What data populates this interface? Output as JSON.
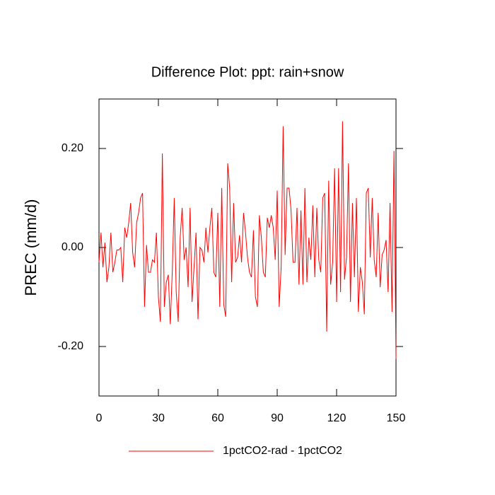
{
  "chart_data": {
    "type": "line",
    "title": "Difference Plot: ppt: rain+snow",
    "y_label": "PREC  (mm/d)",
    "x": [
      0,
      1,
      2,
      3,
      4,
      5,
      6,
      7,
      8,
      9,
      10,
      11,
      12,
      13,
      14,
      15,
      16,
      17,
      18,
      19,
      20,
      21,
      22,
      23,
      24,
      25,
      26,
      27,
      28,
      29,
      30,
      31,
      32,
      33,
      34,
      35,
      36,
      37,
      38,
      39,
      40,
      41,
      42,
      43,
      44,
      45,
      46,
      47,
      48,
      49,
      50,
      51,
      52,
      53,
      54,
      55,
      56,
      57,
      58,
      59,
      60,
      61,
      62,
      63,
      64,
      65,
      66,
      67,
      68,
      69,
      70,
      71,
      72,
      73,
      74,
      75,
      76,
      77,
      78,
      79,
      80,
      81,
      82,
      83,
      84,
      85,
      86,
      87,
      88,
      89,
      90,
      91,
      92,
      93,
      94,
      95,
      96,
      97,
      98,
      99,
      100,
      101,
      102,
      103,
      104,
      105,
      106,
      107,
      108,
      109,
      110,
      111,
      112,
      113,
      114,
      115,
      116,
      117,
      118,
      119,
      120,
      121,
      122,
      123,
      124,
      125,
      126,
      127,
      128,
      129,
      130,
      131,
      132,
      133,
      134,
      135,
      136,
      137,
      138,
      139,
      140,
      141,
      142,
      143,
      144,
      145,
      146,
      147,
      148,
      149,
      150
    ],
    "series": [
      {
        "name": "1pctCO2-rad - 1pctCO2",
        "color": "#ff0000",
        "values": [
          -0.03,
          0.03,
          -0.04,
          0.01,
          -0.07,
          -0.04,
          0.03,
          -0.05,
          -0.03,
          -0.005,
          -0.005,
          0.0,
          -0.07,
          0.04,
          0.02,
          0.05,
          0.09,
          -0.01,
          -0.04,
          0.05,
          0.07,
          0.1,
          0.11,
          -0.12,
          0.005,
          -0.05,
          -0.05,
          -0.025,
          -0.03,
          0.03,
          -0.1,
          -0.15,
          0.19,
          -0.12,
          -0.07,
          -0.055,
          -0.155,
          -0.05,
          0.1,
          -0.09,
          -0.15,
          0.02,
          0.08,
          -0.025,
          0.0,
          -0.08,
          0.08,
          -0.11,
          -0.04,
          0.03,
          -0.145,
          0.0,
          -0.005,
          -0.03,
          0.04,
          -0.01,
          0.04,
          0.08,
          -0.05,
          -0.06,
          0.07,
          -0.12,
          0.12,
          -0.115,
          -0.14,
          0.17,
          0.12,
          -0.07,
          0.09,
          -0.03,
          -0.02,
          0.025,
          -0.03,
          0.07,
          0.03,
          -0.02,
          -0.05,
          -0.06,
          0.035,
          -0.1,
          -0.12,
          0.065,
          0.02,
          -0.05,
          -0.06,
          0.06,
          0.04,
          0.065,
          0.04,
          -0.025,
          0.115,
          -0.12,
          -0.04,
          0.245,
          -0.015,
          0.12,
          0.12,
          0.075,
          -0.03,
          -0.03,
          0.08,
          -0.075,
          0.075,
          -0.075,
          0.12,
          -0.07,
          0.02,
          -0.025,
          0.085,
          -0.06,
          0.08,
          -0.025,
          -0.05,
          0.1,
          0.11,
          -0.17,
          0.135,
          -0.075,
          -0.03,
          0.16,
          -0.11,
          0.16,
          -0.09,
          0.255,
          -0.065,
          -0.02,
          0.17,
          -0.11,
          0.09,
          -0.06,
          0.1,
          -0.13,
          -0.04,
          -0.07,
          -0.135,
          0.11,
          0.12,
          -0.02,
          0.1,
          -0.025,
          -0.06,
          0.07,
          -0.08,
          -0.015,
          -0.005,
          0.015,
          -0.09,
          0.09,
          -0.13,
          0.195,
          -0.225
        ]
      }
    ],
    "xlim": [
      0,
      150
    ],
    "xticks": [
      0,
      30,
      60,
      90,
      120,
      150
    ],
    "ylim": [
      -0.3,
      0.3
    ],
    "yticks": [
      {
        "value": -0.2,
        "label": "-0.20"
      },
      {
        "value": 0,
        "label": "0.00"
      },
      {
        "value": 0.2,
        "label": "0.20"
      }
    ],
    "grid": false,
    "legend": "bottom"
  }
}
